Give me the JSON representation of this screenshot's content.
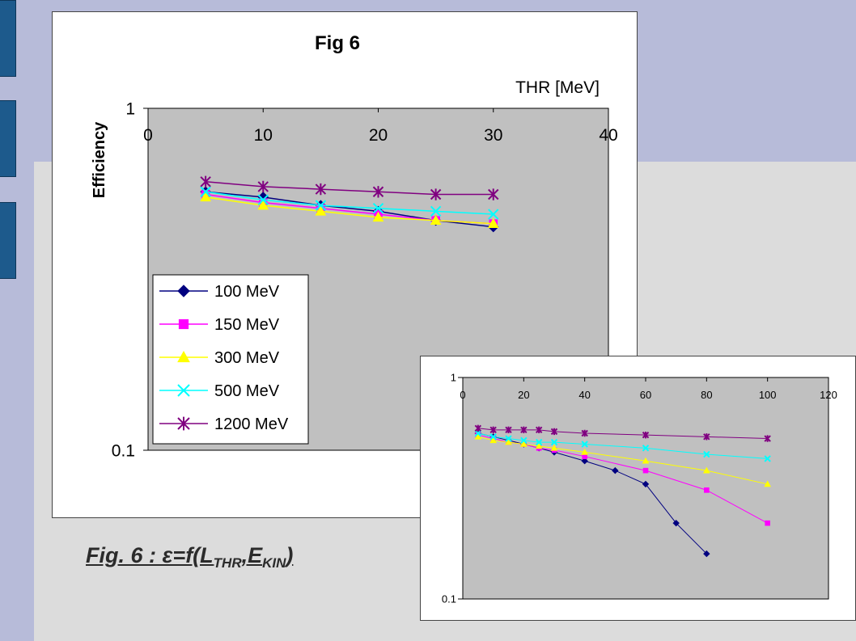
{
  "slide": {
    "caption_main": "Fig. 6 : ε=f(L",
    "caption_sub1": "THR",
    "caption_comma": ",E",
    "caption_sub2": "KIN",
    "caption_close": ")"
  },
  "colors": {
    "background": "#dcdcdc",
    "band": "#b7bbd9",
    "tab": "#1d5a8c",
    "plot_area": "#c0c0c0"
  },
  "chart_data": [
    {
      "type": "line",
      "title": "Fig 6",
      "xlabel": "THR [MeV]",
      "ylabel": "Efficiency",
      "xaxis_position": "top",
      "yscale": "log",
      "xlim": [
        0,
        40
      ],
      "ylim": [
        0.1,
        1
      ],
      "x_ticks": [
        "0",
        "10",
        "20",
        "30",
        "40"
      ],
      "y_ticks": [
        "1",
        "0.1"
      ],
      "grid": false,
      "legend_position": "bottom-left",
      "x": [
        5,
        10,
        15,
        20,
        25,
        30
      ],
      "series": [
        {
          "name": "100 MeV",
          "color": "#000080",
          "marker": "diamond",
          "values": [
            0.57,
            0.55,
            0.52,
            0.5,
            0.47,
            0.45
          ]
        },
        {
          "name": "150 MeV",
          "color": "#ff00ff",
          "marker": "square",
          "values": [
            0.56,
            0.53,
            0.51,
            0.49,
            0.47,
            0.46
          ]
        },
        {
          "name": "300 MeV",
          "color": "#ffff00",
          "marker": "triangle",
          "values": [
            0.55,
            0.52,
            0.5,
            0.48,
            0.47,
            0.46
          ]
        },
        {
          "name": "500 MeV",
          "color": "#00ffff",
          "marker": "x",
          "values": [
            0.57,
            0.54,
            0.52,
            0.51,
            0.5,
            0.49
          ]
        },
        {
          "name": "1200 MeV",
          "color": "#800080",
          "marker": "star",
          "values": [
            0.61,
            0.59,
            0.58,
            0.57,
            0.56,
            0.56
          ]
        }
      ]
    },
    {
      "type": "line",
      "title": "",
      "xaxis_position": "top",
      "yscale": "log",
      "xlim": [
        0,
        120
      ],
      "ylim": [
        0.1,
        1
      ],
      "x_ticks": [
        "0",
        "20",
        "40",
        "60",
        "80",
        "100",
        "120"
      ],
      "y_ticks": [
        "1",
        "0.1"
      ],
      "grid": false,
      "series": [
        {
          "color": "#000080",
          "marker": "diamond",
          "x": [
            5,
            10,
            15,
            20,
            25,
            30,
            40,
            50,
            60,
            70,
            80
          ],
          "values": [
            0.56,
            0.54,
            0.52,
            0.5,
            0.48,
            0.46,
            0.42,
            0.38,
            0.33,
            0.22,
            0.16
          ]
        },
        {
          "color": "#ff00ff",
          "marker": "square",
          "x": [
            5,
            10,
            15,
            20,
            25,
            30,
            40,
            60,
            80,
            100
          ],
          "values": [
            0.55,
            0.53,
            0.51,
            0.5,
            0.48,
            0.47,
            0.44,
            0.38,
            0.31,
            0.22
          ]
        },
        {
          "color": "#ffff00",
          "marker": "triangle",
          "x": [
            5,
            10,
            15,
            20,
            25,
            30,
            40,
            60,
            80,
            100
          ],
          "values": [
            0.54,
            0.52,
            0.51,
            0.5,
            0.49,
            0.48,
            0.46,
            0.42,
            0.38,
            0.33
          ]
        },
        {
          "color": "#00ffff",
          "marker": "x",
          "x": [
            5,
            10,
            15,
            20,
            25,
            30,
            40,
            60,
            80,
            100
          ],
          "values": [
            0.56,
            0.54,
            0.53,
            0.52,
            0.51,
            0.51,
            0.5,
            0.48,
            0.45,
            0.43
          ]
        },
        {
          "color": "#800080",
          "marker": "star",
          "x": [
            5,
            10,
            15,
            20,
            25,
            30,
            40,
            60,
            80,
            100
          ],
          "values": [
            0.59,
            0.58,
            0.58,
            0.58,
            0.58,
            0.57,
            0.56,
            0.55,
            0.54,
            0.53
          ]
        }
      ]
    }
  ]
}
